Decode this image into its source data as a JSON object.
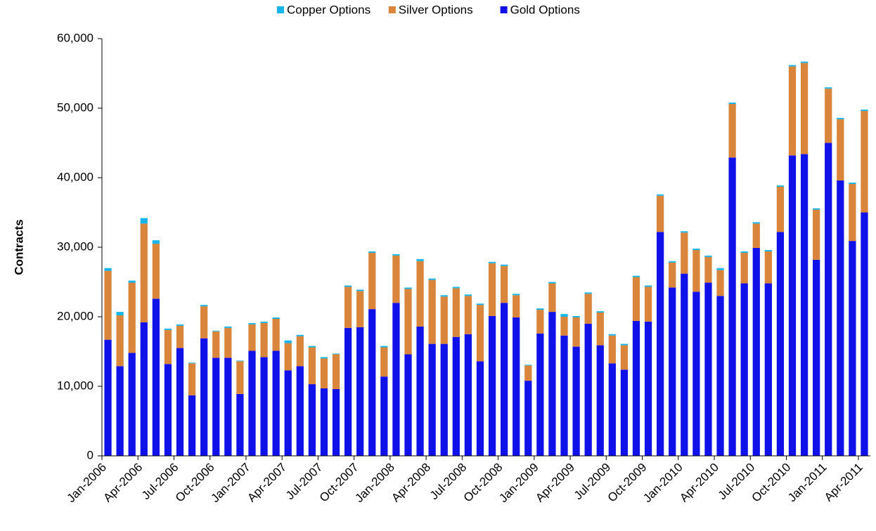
{
  "chart_data": {
    "type": "stacked_bar",
    "y_label": "Contracts",
    "categories": [
      "Jan-2006",
      null,
      null,
      "Apr-2006",
      null,
      null,
      "Jul-2006",
      null,
      null,
      "Oct-2006",
      null,
      null,
      "Jan-2007",
      null,
      null,
      "Apr-2007",
      null,
      null,
      "Jul-2007",
      null,
      null,
      "Oct-2007",
      null,
      null,
      "Jan-2008",
      null,
      null,
      "Apr-2008",
      null,
      null,
      "Jul-2008",
      null,
      null,
      "Oct-2008",
      null,
      null,
      "Jan-2009",
      null,
      null,
      "Apr-2009",
      null,
      null,
      "Jul-2009",
      null,
      null,
      "Oct-2009",
      null,
      null,
      "Jan-2010",
      null,
      null,
      "Apr-2010",
      null,
      null,
      "Jul-2010",
      null,
      null,
      "Oct-2010",
      null,
      null,
      "Jan-2011",
      null,
      null,
      "Apr-2011"
    ],
    "series": [
      {
        "name": "Copper Options",
        "color": "#19b5e8",
        "values": [
          400,
          500,
          300,
          800,
          500,
          200,
          200,
          100,
          200,
          100,
          200,
          100,
          200,
          200,
          200,
          400,
          200,
          200,
          200,
          100,
          200,
          200,
          200,
          200,
          200,
          200,
          300,
          200,
          200,
          200,
          200,
          200,
          200,
          200,
          200,
          100,
          200,
          200,
          400,
          200,
          200,
          200,
          200,
          200,
          200,
          200,
          200,
          200,
          200,
          200,
          200,
          300,
          200,
          200,
          200,
          200,
          200,
          200,
          200,
          200,
          200,
          200,
          200,
          200
        ]
      },
      {
        "name": "Silver Options",
        "color": "#d9853b",
        "values": [
          9900,
          7300,
          10100,
          14200,
          7900,
          4900,
          3200,
          4600,
          4600,
          3800,
          4300,
          4700,
          3800,
          4900,
          4600,
          3900,
          4300,
          5300,
          4300,
          5000,
          5900,
          5200,
          8100,
          4200,
          6800,
          9400,
          9400,
          9200,
          6800,
          7000,
          5500,
          8100,
          7600,
          5300,
          3200,
          2200,
          3400,
          4100,
          2700,
          4200,
          4300,
          4700,
          4000,
          3500,
          6300,
          5000,
          5200,
          3600,
          5900,
          6000,
          3700,
          3700,
          7700,
          4400,
          3500,
          4600,
          6500,
          12800,
          13100,
          7200,
          7800,
          8800,
          8200,
          14600
        ]
      },
      {
        "name": "Gold Options",
        "color": "#1010e8",
        "values": [
          16700,
          12900,
          14800,
          19200,
          22600,
          13200,
          15500,
          8700,
          16900,
          14100,
          14100,
          8900,
          15100,
          14200,
          15100,
          12300,
          12900,
          10300,
          9700,
          9600,
          18400,
          18500,
          21100,
          11400,
          22000,
          14600,
          18600,
          16100,
          16100,
          17100,
          17500,
          13600,
          20100,
          22000,
          19900,
          10800,
          17600,
          20700,
          17300,
          15700,
          19000,
          15900,
          13300,
          12400,
          19400,
          19300,
          32200,
          24200,
          26200,
          23600,
          24900,
          23000,
          42900,
          24800,
          29900,
          24800,
          32200,
          43200,
          43400,
          28200,
          45000,
          39600,
          30900,
          35000
        ]
      }
    ],
    "ylim": [
      0,
      60000
    ],
    "yticks": [
      0,
      {
        "value": 10000,
        "label": "10,000"
      },
      {
        "value": 20000,
        "label": "20,000"
      },
      {
        "value": 30000,
        "label": "30,000"
      },
      {
        "value": 40000,
        "label": "40,000"
      },
      {
        "value": 50000,
        "label": "50,000"
      },
      {
        "value": 60000,
        "label": "60,000"
      }
    ],
    "legend": "top"
  }
}
